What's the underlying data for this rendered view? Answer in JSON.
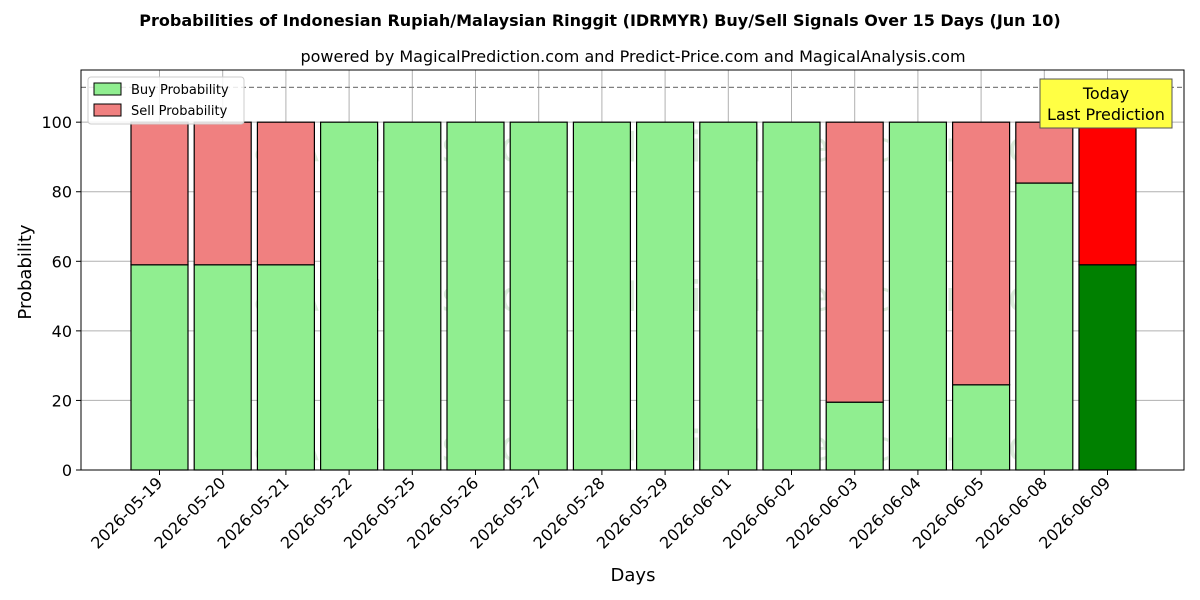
{
  "chart_data": {
    "type": "bar",
    "stacked": true,
    "title": "Probabilities of Indonesian Rupiah/Malaysian Ringgit (IDRMYR) Buy/Sell Signals Over 15 Days (Jun 10)",
    "subtitle": "powered by MagicalPrediction.com and Predict-Price.com and MagicalAnalysis.com",
    "xlabel": "Days",
    "ylabel": "Probability",
    "ylim": [
      0,
      115
    ],
    "yticks": [
      0,
      20,
      40,
      60,
      80,
      100
    ],
    "reference_line": 110,
    "grid": true,
    "legend_position": "top-left",
    "categories": [
      "2026-05-19",
      "2026-05-20",
      "2026-05-21",
      "2026-05-22",
      "2026-05-25",
      "2026-05-26",
      "2026-05-27",
      "2026-05-28",
      "2026-05-29",
      "2026-06-01",
      "2026-06-02",
      "2026-06-03",
      "2026-06-04",
      "2026-06-05",
      "2026-06-08",
      "2026-06-09"
    ],
    "series": [
      {
        "name": "Buy Probability",
        "color": "#90ee90",
        "highlight_color": "#008000",
        "values": [
          59,
          59,
          59,
          100,
          100,
          100,
          100,
          100,
          100,
          100,
          100,
          19.5,
          100,
          24.5,
          82.5,
          59
        ]
      },
      {
        "name": "Sell Probability",
        "color": "#f08080",
        "highlight_color": "#ff0000",
        "values": [
          41,
          41,
          41,
          0,
          0,
          0,
          0,
          0,
          0,
          0,
          0,
          80.5,
          0,
          75.5,
          17.5,
          41
        ]
      }
    ],
    "highlight_index": 15,
    "annotation": {
      "line1": "Today",
      "line2": "Last Prediction",
      "color": "#ffff44"
    },
    "watermarks": [
      "MagicalAnalysis.com",
      "MagicalPrediction.com"
    ]
  }
}
